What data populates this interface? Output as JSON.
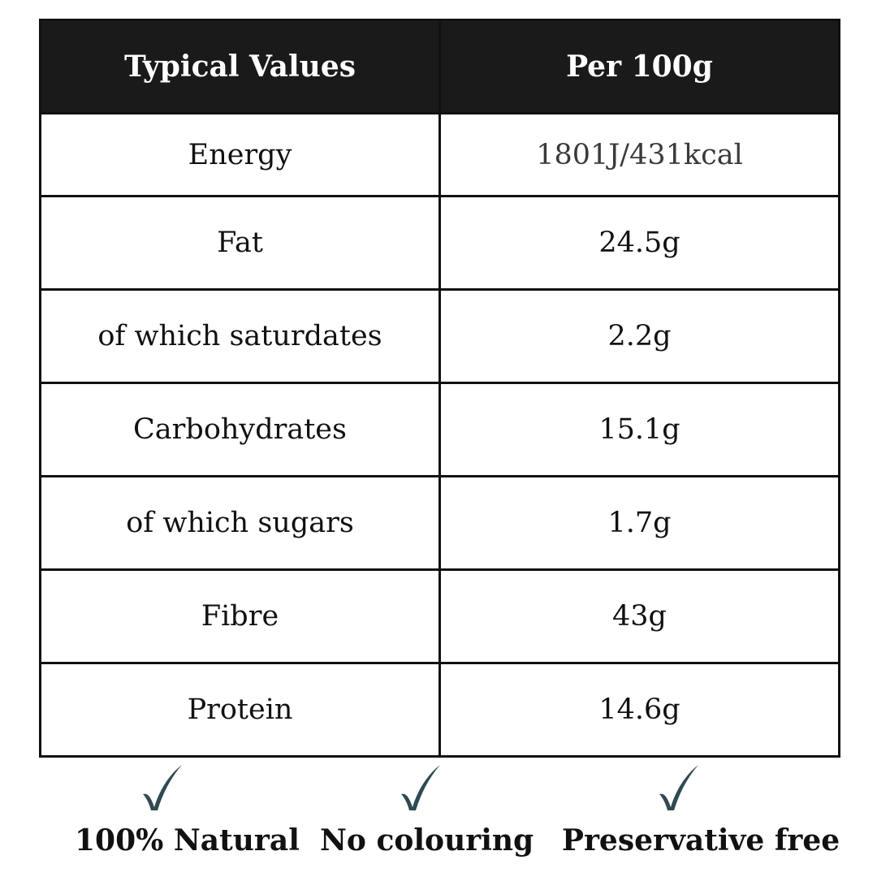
{
  "table": {
    "header": {
      "col1": "Typical Values",
      "col2": "Per 100g"
    },
    "rows": [
      {
        "label": "Energy",
        "value": "1801J/431kcal"
      },
      {
        "label": "Fat",
        "value": "24.5g"
      },
      {
        "label": "of which saturdates",
        "value": "2.2g"
      },
      {
        "label": "Carbohydrates",
        "value": "15.1g"
      },
      {
        "label": "of which sugars",
        "value": "1.7g"
      },
      {
        "label": "Fibre",
        "value": "43g"
      },
      {
        "label": "Protein",
        "value": "14.6g"
      }
    ]
  },
  "badges": [
    {
      "label": "100% Natural",
      "icon": "checkmark-icon"
    },
    {
      "label": "No colouring",
      "icon": "checkmark-icon"
    },
    {
      "label": "Preservative free",
      "icon": "checkmark-icon"
    }
  ],
  "colors": {
    "header_bg": "#1a1a1a",
    "header_text": "#ffffff",
    "checkmark": "#2f4a52"
  }
}
